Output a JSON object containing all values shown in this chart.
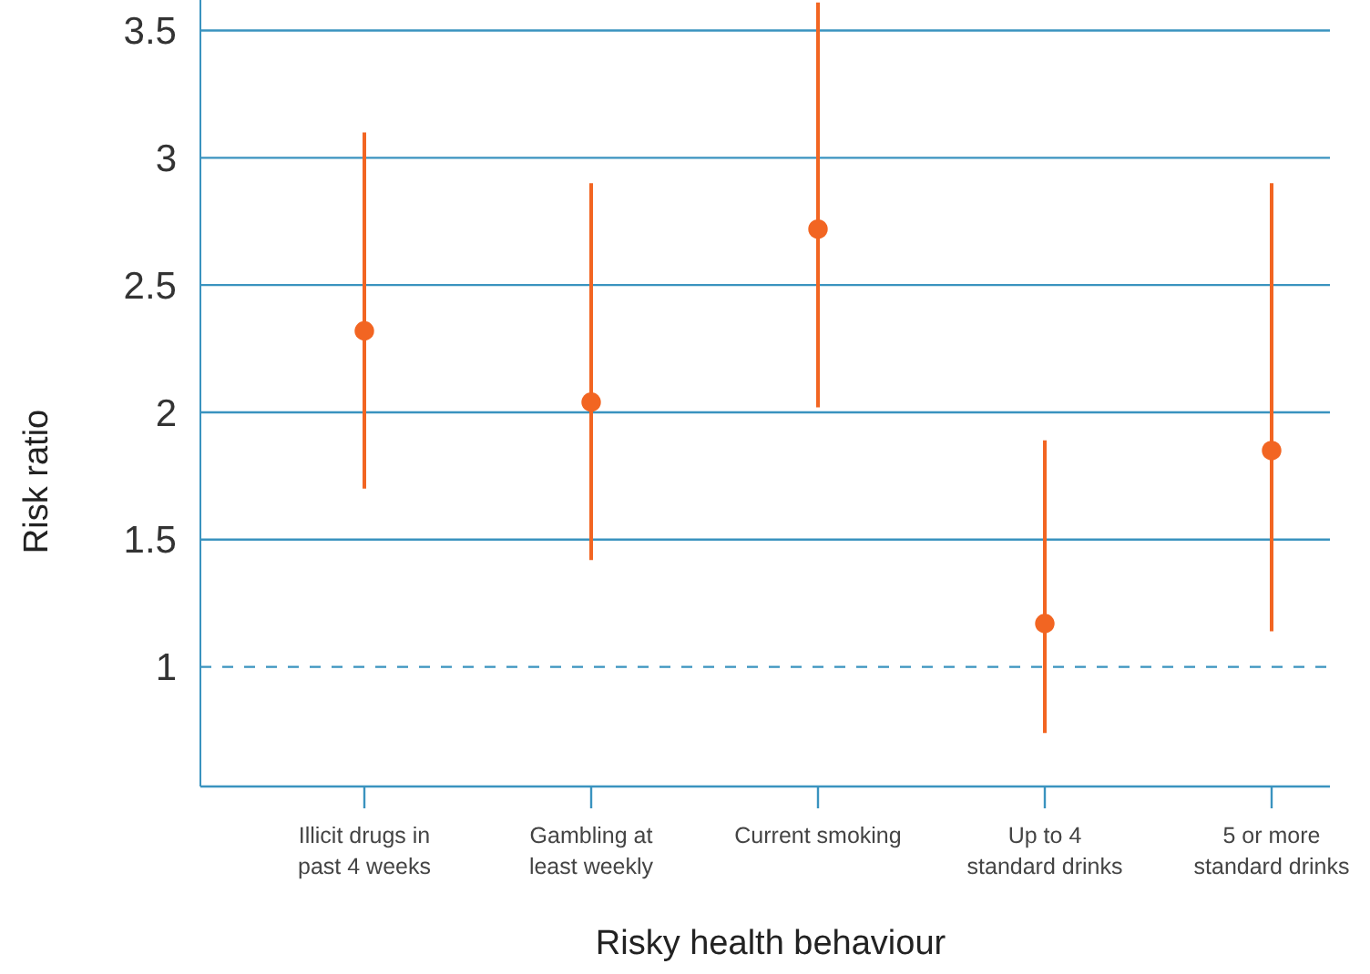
{
  "chart_data": {
    "type": "scatter",
    "xlabel": "Risky health behaviour",
    "ylabel": "Risk ratio",
    "categories": [
      "Illicit drugs in\npast 4 weeks",
      "Gambling at\nleast weekly",
      "Current smoking",
      "Up to 4\nstandard drinks",
      "5 or more\nstandard drinks"
    ],
    "values": [
      2.32,
      2.04,
      2.72,
      1.17,
      1.85
    ],
    "errors": [
      [
        1.7,
        3.1
      ],
      [
        1.42,
        2.9
      ],
      [
        2.02,
        3.61
      ],
      [
        0.74,
        1.89
      ],
      [
        1.14,
        2.9
      ]
    ],
    "color": "#f26522",
    "marker": "circle",
    "ylim": [
      0.53,
      3.62
    ],
    "yticks": [
      1,
      1.5,
      2,
      2.5,
      3,
      3.5
    ],
    "grid": "y",
    "ref_lines": [
      {
        "axis": "y",
        "value": 1,
        "color": "#3a93bf",
        "line_style": "dashed"
      }
    ]
  }
}
